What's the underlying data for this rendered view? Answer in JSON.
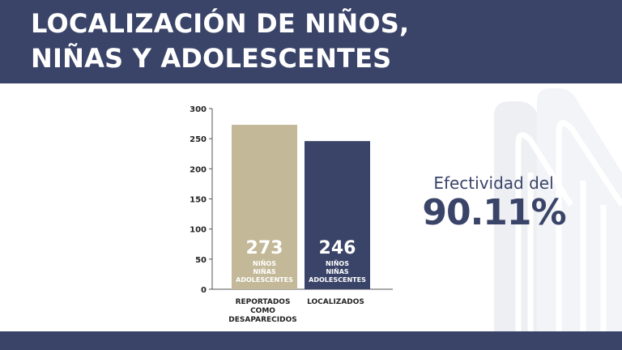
{
  "header": {
    "title": "LOCALIZACIÓN DE NIÑOS,\nNIÑAS Y ADOLESCENTES"
  },
  "effectiveness": {
    "label": "Efectividad del",
    "value": "90.11%"
  },
  "colors": {
    "navy": "#3a4468",
    "beige": "#c3b898",
    "white": "#ffffff",
    "decor": "#eeeff3"
  },
  "chart_data": {
    "type": "bar",
    "title": "",
    "xlabel": "",
    "ylabel": "",
    "ylim": [
      0,
      300
    ],
    "yticks": [
      0,
      50,
      100,
      150,
      200,
      250,
      300
    ],
    "grid": false,
    "categories": [
      {
        "label_lines": [
          "REPORTADOS",
          "COMO",
          "DESAPARECIDOS"
        ]
      },
      {
        "label_lines": [
          "LOCALIZADOS"
        ]
      }
    ],
    "values": [
      273,
      246
    ],
    "value_labels": [
      "273",
      "246"
    ],
    "bar_colors": [
      "#c3b898",
      "#3a4468"
    ],
    "bar_sublabels": [
      [
        "NIÑOS",
        "NIÑAS",
        "ADOLESCENTES"
      ],
      [
        "NIÑOS",
        "NIÑAS",
        "ADOLESCENTES"
      ]
    ]
  }
}
